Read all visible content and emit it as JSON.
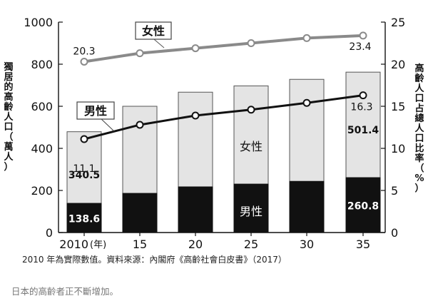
{
  "chart_data": {
    "type": "bar+line",
    "categories": [
      "2010 (年)",
      "15",
      "20",
      "25",
      "30",
      "35"
    ],
    "bar_series": [
      {
        "name": "男性",
        "values": [
          138.6,
          186,
          217,
          230,
          243,
          260.8
        ]
      },
      {
        "name": "女性",
        "values": [
          340.5,
          414,
          450,
          467,
          485,
          501.4
        ]
      }
    ],
    "bar_labels": {
      "male": [
        "138.6",
        "",
        "",
        "",
        "",
        "260.8"
      ],
      "female": [
        "340.5",
        "",
        "",
        "",
        "",
        "501.4"
      ]
    },
    "line_series": [
      {
        "name": "女性",
        "values": [
          20.3,
          21.3,
          21.9,
          22.5,
          23.1,
          23.4
        ]
      },
      {
        "name": "男性",
        "values": [
          11.1,
          12.8,
          13.9,
          14.6,
          15.4,
          16.3
        ]
      }
    ],
    "line_labels": {
      "female": [
        "20.3",
        "",
        "",
        "",
        "",
        "23.4"
      ],
      "male": [
        "11.1",
        "",
        "",
        "",
        "",
        "16.3"
      ]
    },
    "left_axis": {
      "label": "獨居的高齡人口（萬人）",
      "ylim": [
        0,
        1000
      ],
      "ticks": [
        "0",
        "200",
        "400",
        "600",
        "800",
        "1000"
      ]
    },
    "right_axis": {
      "label": "高齡人口占總人口比率（%）",
      "ylim": [
        0,
        25
      ],
      "ticks": [
        "0",
        "5",
        "10",
        "15",
        "20",
        "25"
      ]
    },
    "bar_inner_label": "女性",
    "bar_inner_label_male": "男性",
    "line_legend_female": "女性",
    "line_legend_male": "男性",
    "x_unit": "(年)",
    "x_first": "2010",
    "grid": false,
    "colors": {
      "male_bar": "#111111",
      "female_bar": "#e4e4e4",
      "female_line": "#8a8a8a",
      "male_line": "#111111"
    }
  },
  "caption": "2010 年為實際數值。資料來源：內閣府《高齡社會白皮書》（2017）",
  "subcaption": "日本的高齡者正不斷增加。"
}
